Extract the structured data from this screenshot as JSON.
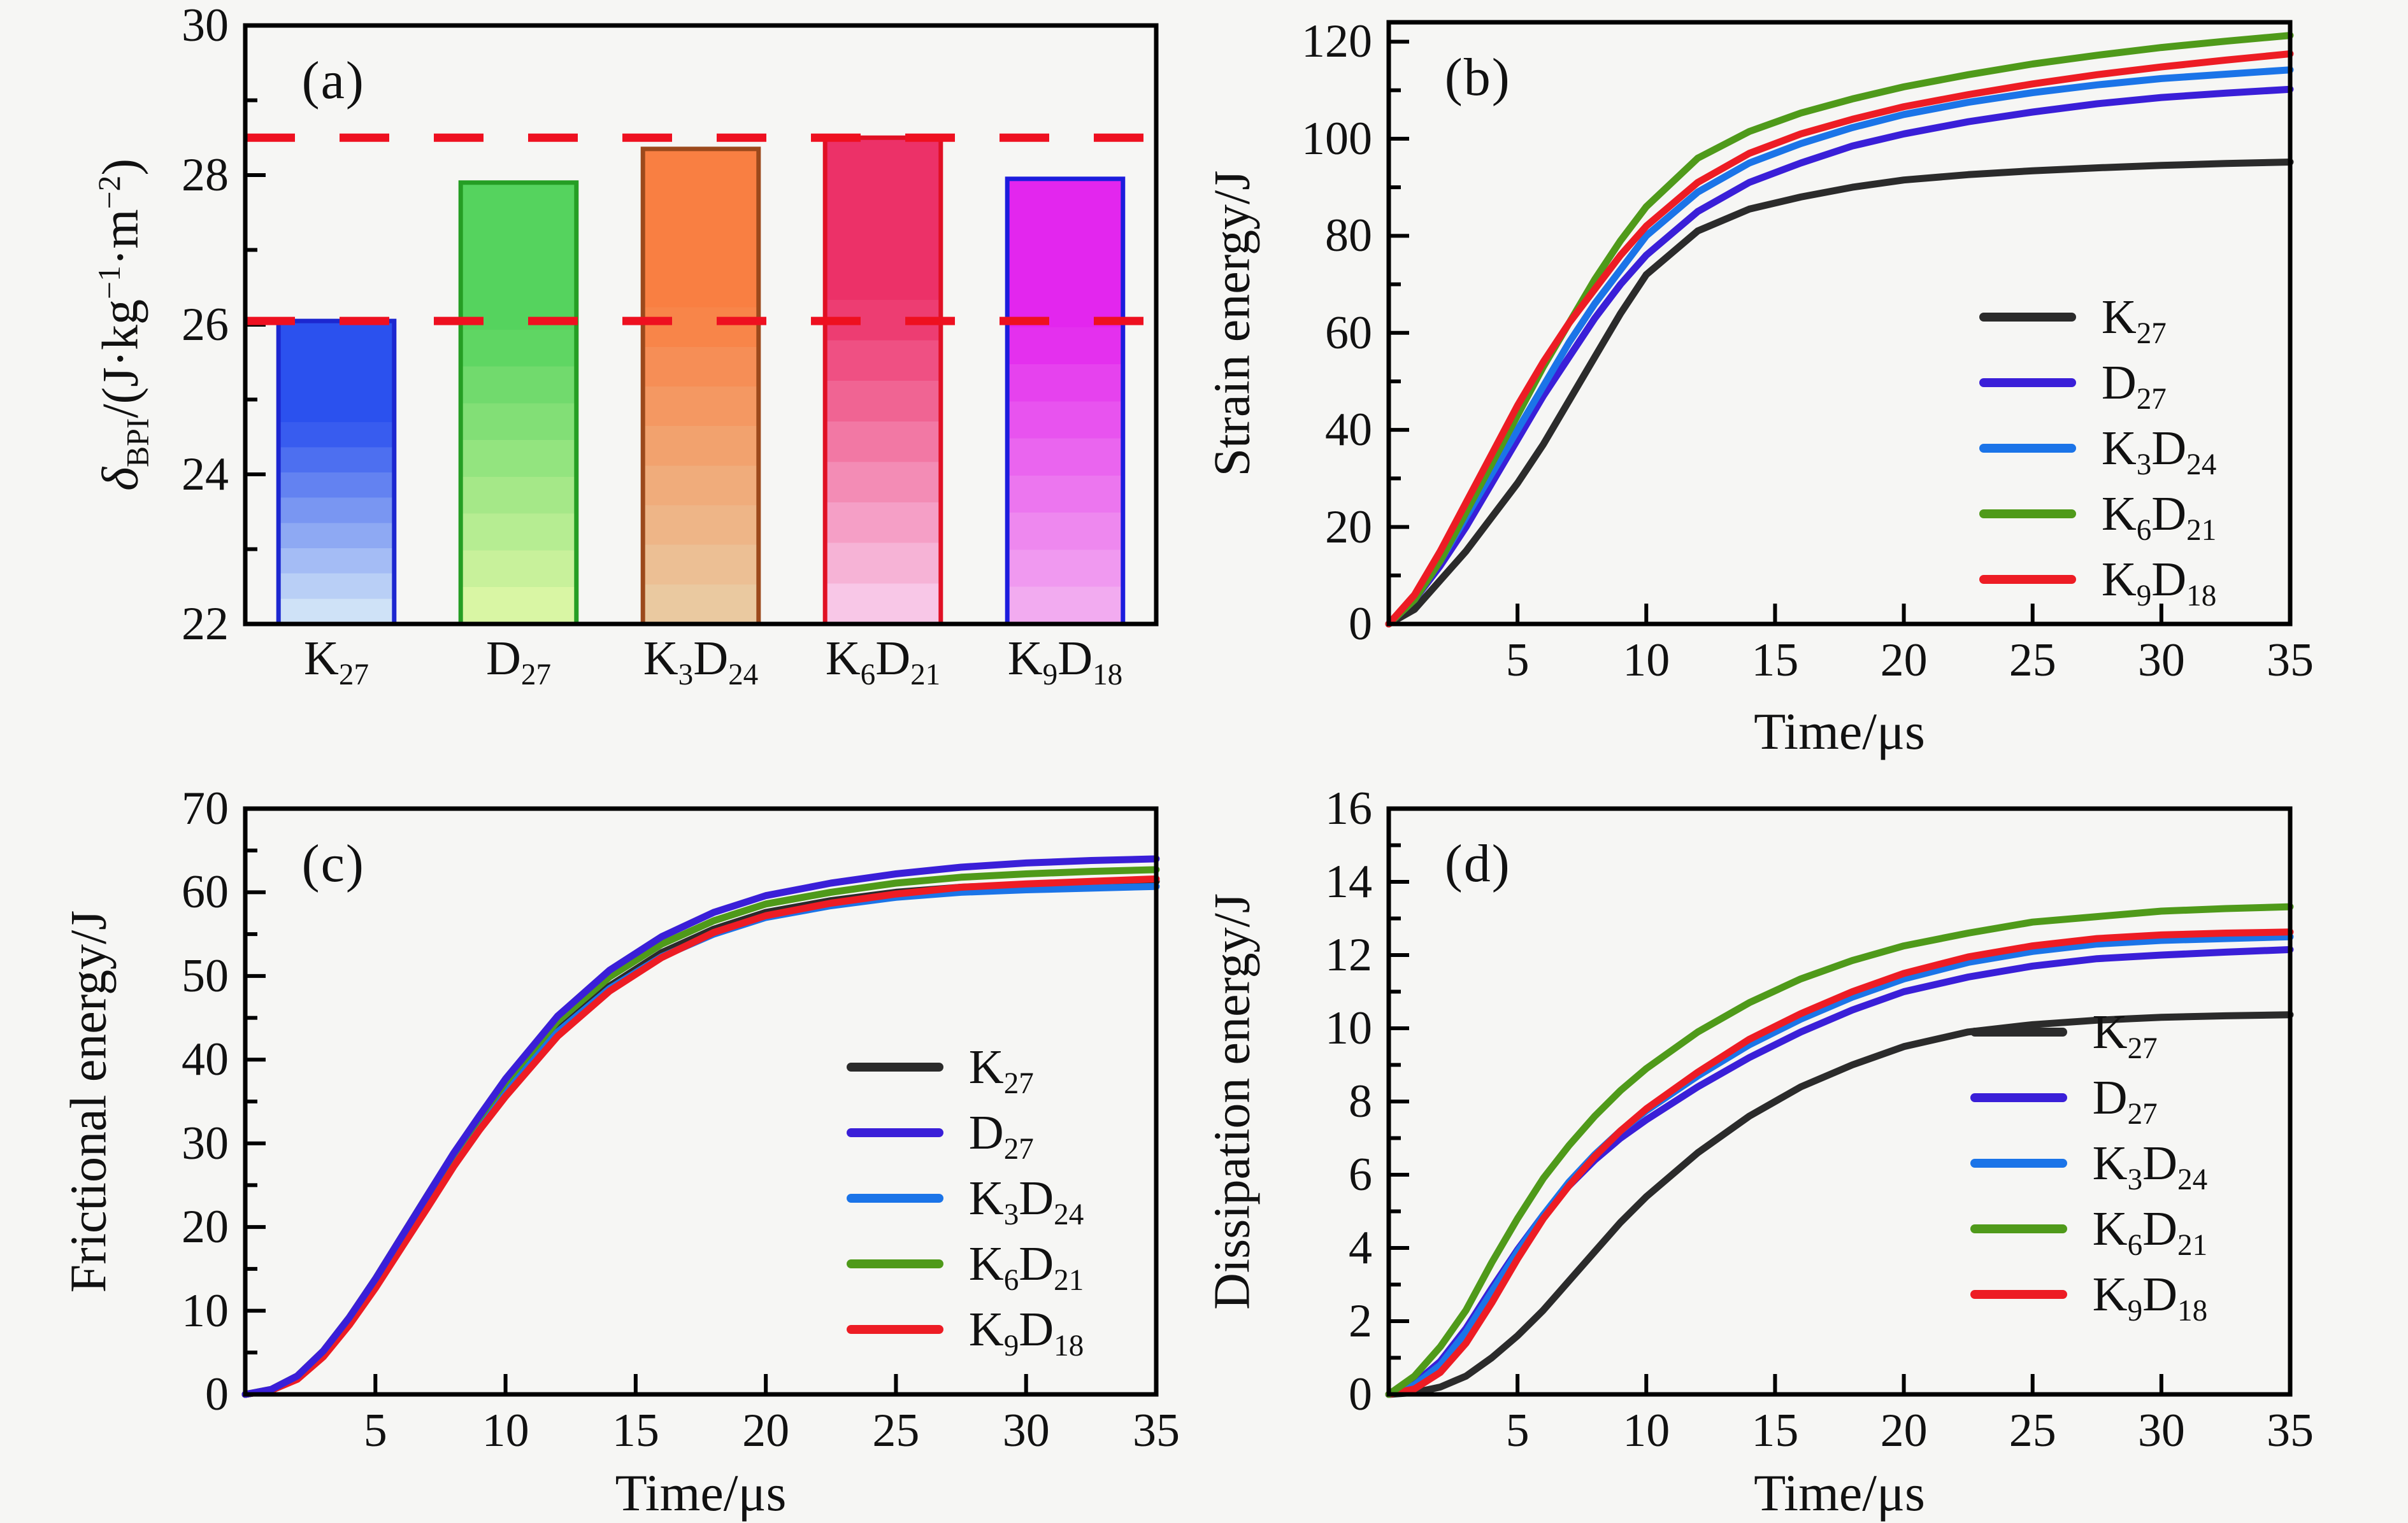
{
  "figure": {
    "background": "#f6f6f4",
    "text_color": "#111111",
    "axis_color": "#000000",
    "reference_line_color": "#ee1020",
    "series_colors": {
      "K27": "#2b2b2b",
      "D27": "#3a1fd8",
      "K3D24": "#1b74e8",
      "K6D21": "#4f9a1a",
      "K9D18": "#ed1c24"
    }
  },
  "chart_data": [
    {
      "id": "a",
      "letter": "(a)",
      "type": "bar",
      "ylabel_parts": [
        {
          "i": "δ"
        },
        {
          "sub": "BPI"
        },
        {
          "t": "/(J·kg"
        },
        {
          "sup": "−1"
        },
        {
          "t": "·m"
        },
        {
          "sup": "−2"
        },
        {
          "t": ")"
        }
      ],
      "xlabel": "",
      "ylim": [
        22,
        30
      ],
      "ytick_max": 30,
      "ymajor": 2,
      "yminor": 1,
      "categories": [
        [
          [
            "K",
            "27"
          ]
        ],
        [
          [
            "D",
            "27"
          ]
        ],
        [
          [
            "K",
            "3"
          ],
          [
            "D",
            "24"
          ]
        ],
        [
          [
            "K",
            "6"
          ],
          [
            "D",
            "21"
          ]
        ],
        [
          [
            "K",
            "9"
          ],
          [
            "D",
            "18"
          ]
        ]
      ],
      "values": [
        26.05,
        27.9,
        28.35,
        28.5,
        27.95
      ],
      "bar_colors": [
        {
          "bottom": "#cfe2f7",
          "top": "#2b51ee",
          "edge": "#1c27d0"
        },
        {
          "bottom": "#d9f6a4",
          "top": "#55d35e",
          "edge": "#259e24"
        },
        {
          "bottom": "#eac9a0",
          "top": "#f97f42",
          "edge": "#9c491c"
        },
        {
          "bottom": "#f8c7e7",
          "top": "#ec3168",
          "edge": "#e01024"
        },
        {
          "bottom": "#f2abf0",
          "top": "#e326ee",
          "edge": "#1c1cdd"
        }
      ],
      "reference_lines": [
        26.05,
        28.5
      ]
    },
    {
      "id": "b",
      "letter": "(b)",
      "type": "line",
      "ylabel_parts": [
        {
          "t": "Strain energy/J"
        }
      ],
      "xlabel": "Time/μs",
      "ylim": [
        0,
        124
      ],
      "ytick_max": 120,
      "ymajor": 20,
      "yminor": 10,
      "xlim": [
        0,
        35
      ],
      "xticks": [
        5,
        10,
        15,
        20,
        25,
        30,
        35
      ],
      "x": [
        0,
        1,
        2,
        3,
        4,
        5,
        6,
        7,
        8,
        9,
        10,
        12,
        14,
        16,
        18,
        20,
        22.5,
        25,
        27.5,
        30,
        32.5,
        35
      ],
      "legend_pos": {
        "left": 0.655,
        "top": 0.45
      },
      "draw_order": [
        0,
        1,
        2,
        3,
        4
      ],
      "series": [
        {
          "key": "K27",
          "label_parts": [
            [
              "K",
              "27"
            ]
          ],
          "values": [
            0,
            3,
            9,
            15,
            22,
            29,
            37,
            46,
            55,
            64,
            72,
            81,
            85.5,
            88,
            90,
            91.5,
            92.6,
            93.4,
            94,
            94.5,
            94.9,
            95.2
          ]
        },
        {
          "key": "D27",
          "label_parts": [
            [
              "D",
              "27"
            ]
          ],
          "values": [
            0,
            5,
            12,
            20,
            29,
            38,
            47,
            55,
            63,
            70,
            76,
            85,
            91,
            95,
            98.5,
            101,
            103.5,
            105.5,
            107.2,
            108.5,
            109.4,
            110.2
          ]
        },
        {
          "key": "K3D24",
          "label_parts": [
            [
              "K",
              "3"
            ],
            [
              "D",
              "24"
            ]
          ],
          "values": [
            0,
            5,
            13,
            22,
            31,
            40,
            49,
            58,
            66,
            73,
            80,
            89,
            95,
            99,
            102.3,
            105,
            107.5,
            109.5,
            111.1,
            112.4,
            113.3,
            114.2
          ]
        },
        {
          "key": "K6D21",
          "label_parts": [
            [
              "K",
              "6"
            ],
            [
              "D",
              "21"
            ]
          ],
          "values": [
            0,
            5,
            13,
            23,
            33,
            43,
            53,
            62,
            71,
            79,
            86,
            96,
            101.5,
            105.3,
            108.2,
            110.7,
            113.2,
            115.4,
            117.2,
            118.8,
            120.1,
            121.3
          ]
        },
        {
          "key": "K9D18",
          "label_parts": [
            [
              "K",
              "9"
            ],
            [
              "D",
              "18"
            ]
          ],
          "values": [
            0,
            6,
            15,
            25,
            35,
            45,
            54,
            62,
            69,
            76,
            82,
            91,
            97,
            101,
            104,
            106.6,
            109.1,
            111.3,
            113.2,
            114.8,
            116.2,
            117.5
          ]
        }
      ]
    },
    {
      "id": "c",
      "letter": "(c)",
      "type": "line",
      "ylabel_parts": [
        {
          "t": "Frictional energy/J"
        }
      ],
      "xlabel": "Time/μs",
      "ylim": [
        0,
        70
      ],
      "ytick_max": 70,
      "ymajor": 10,
      "yminor": 5,
      "xlim": [
        0,
        35
      ],
      "xticks": [
        5,
        10,
        15,
        20,
        25,
        30,
        35
      ],
      "x": [
        0,
        1,
        2,
        3,
        4,
        5,
        6,
        7,
        8,
        9,
        10,
        12,
        14,
        16,
        18,
        20,
        22.5,
        25,
        27.5,
        30,
        32.5,
        35
      ],
      "legend_pos": {
        "left": 0.66,
        "top": 0.4
      },
      "draw_order": [
        0,
        2,
        4,
        3,
        1
      ],
      "series": [
        {
          "key": "K27",
          "label_parts": [
            [
              "K",
              "27"
            ]
          ],
          "values": [
            0,
            0.5,
            2,
            4.8,
            8.6,
            13,
            18,
            23,
            28,
            32.3,
            36.3,
            43.5,
            48.8,
            52.8,
            55.6,
            57.6,
            59,
            60,
            60.6,
            60.9,
            61.1,
            61.3
          ]
        },
        {
          "key": "D27",
          "label_parts": [
            [
              "D",
              "27"
            ]
          ],
          "values": [
            0,
            0.6,
            2.2,
            5.2,
            9.2,
            13.8,
            18.8,
            23.8,
            28.8,
            33.3,
            37.7,
            45.2,
            50.7,
            54.7,
            57.6,
            59.6,
            61.1,
            62.2,
            63,
            63.5,
            63.8,
            64
          ]
        },
        {
          "key": "K3D24",
          "label_parts": [
            [
              "K",
              "3"
            ],
            [
              "D",
              "24"
            ]
          ],
          "values": [
            0,
            0.5,
            2,
            4.8,
            8.6,
            13,
            18,
            23,
            28,
            32.3,
            36.2,
            43.3,
            48.5,
            52.3,
            55,
            57,
            58.4,
            59.4,
            60,
            60.3,
            60.5,
            60.7
          ]
        },
        {
          "key": "K6D21",
          "label_parts": [
            [
              "K",
              "6"
            ],
            [
              "D",
              "21"
            ]
          ],
          "values": [
            0,
            0.6,
            2.2,
            5.2,
            9.2,
            13.8,
            18.8,
            23.8,
            28.7,
            33.1,
            37.3,
            44.6,
            49.9,
            53.8,
            56.6,
            58.6,
            60,
            61.1,
            61.8,
            62.2,
            62.5,
            62.7
          ]
        },
        {
          "key": "K9D18",
          "label_parts": [
            [
              "K",
              "9"
            ],
            [
              "D",
              "18"
            ]
          ],
          "values": [
            0,
            0.5,
            1.8,
            4.5,
            8.3,
            12.7,
            17.5,
            22.3,
            27.2,
            31.6,
            35.6,
            42.8,
            48.2,
            52.2,
            55.2,
            57.2,
            58.7,
            59.8,
            60.6,
            61,
            61.3,
            61.6
          ]
        }
      ]
    },
    {
      "id": "d",
      "letter": "(d)",
      "type": "line",
      "ylabel_parts": [
        {
          "t": "Dissipation energy/J"
        }
      ],
      "xlabel": "Time/μs",
      "ylim": [
        0,
        16
      ],
      "ytick_max": 16,
      "ymajor": 2,
      "yminor": 1,
      "xlim": [
        0,
        35
      ],
      "xticks": [
        5,
        10,
        15,
        20,
        25,
        30,
        35
      ],
      "x": [
        0,
        1,
        2,
        3,
        4,
        5,
        6,
        7,
        8,
        9,
        10,
        12,
        14,
        16,
        18,
        20,
        22.5,
        25,
        27.5,
        30,
        32.5,
        35
      ],
      "legend_pos": {
        "left": 0.645,
        "top": 0.34
      },
      "draw_order": [
        0,
        1,
        2,
        4,
        3
      ],
      "series": [
        {
          "key": "K27",
          "label_parts": [
            [
              "K",
              "27"
            ]
          ],
          "values": [
            0,
            0.05,
            0.2,
            0.5,
            1,
            1.6,
            2.3,
            3.1,
            3.9,
            4.7,
            5.4,
            6.6,
            7.6,
            8.4,
            9,
            9.5,
            9.9,
            10.1,
            10.22,
            10.3,
            10.34,
            10.37
          ]
        },
        {
          "key": "D27",
          "label_parts": [
            [
              "D",
              "27"
            ]
          ],
          "values": [
            0,
            0.3,
            0.9,
            1.8,
            2.9,
            3.95,
            4.9,
            5.7,
            6.4,
            7,
            7.5,
            8.4,
            9.2,
            9.9,
            10.5,
            11,
            11.4,
            11.7,
            11.9,
            12,
            12.08,
            12.15
          ]
        },
        {
          "key": "K3D24",
          "label_parts": [
            [
              "K",
              "3"
            ],
            [
              "D",
              "24"
            ]
          ],
          "values": [
            0,
            0.25,
            0.8,
            1.7,
            2.8,
            3.9,
            4.9,
            5.8,
            6.55,
            7.2,
            7.75,
            8.7,
            9.55,
            10.25,
            10.85,
            11.35,
            11.8,
            12.1,
            12.3,
            12.4,
            12.45,
            12.5
          ]
        },
        {
          "key": "K6D21",
          "label_parts": [
            [
              "K",
              "6"
            ],
            [
              "D",
              "21"
            ]
          ],
          "values": [
            0,
            0.5,
            1.3,
            2.3,
            3.6,
            4.8,
            5.9,
            6.8,
            7.6,
            8.3,
            8.9,
            9.9,
            10.7,
            11.35,
            11.85,
            12.25,
            12.6,
            12.9,
            13.05,
            13.2,
            13.27,
            13.32
          ]
        },
        {
          "key": "K9D18",
          "label_parts": [
            [
              "K",
              "9"
            ],
            [
              "D",
              "18"
            ]
          ],
          "values": [
            0,
            0.15,
            0.6,
            1.4,
            2.5,
            3.7,
            4.8,
            5.7,
            6.5,
            7.2,
            7.8,
            8.8,
            9.7,
            10.4,
            11,
            11.5,
            11.95,
            12.25,
            12.45,
            12.55,
            12.6,
            12.63
          ]
        }
      ]
    }
  ]
}
